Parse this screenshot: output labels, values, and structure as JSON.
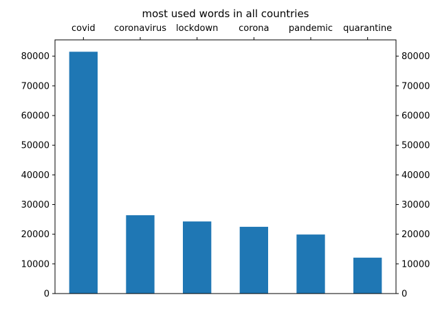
{
  "chart_data": {
    "type": "bar",
    "title": "most used words in all countries",
    "xlabel": "",
    "ylabel": "",
    "categories": [
      "covid",
      "coronavirus",
      "lockdown",
      "corona",
      "pandemic",
      "quarantine"
    ],
    "values": [
      81500,
      26400,
      24300,
      22500,
      19900,
      12100
    ],
    "ylim": [
      0,
      85500
    ],
    "yticks": [
      0,
      10000,
      20000,
      30000,
      40000,
      50000,
      60000,
      70000,
      80000
    ],
    "ytick_labels": [
      "0",
      "10000",
      "20000",
      "30000",
      "40000",
      "50000",
      "60000",
      "70000",
      "80000"
    ],
    "category_axis_position": "top",
    "value_axis_position": "left-and-right",
    "grid": false,
    "bar_color": "#1f77b4"
  }
}
